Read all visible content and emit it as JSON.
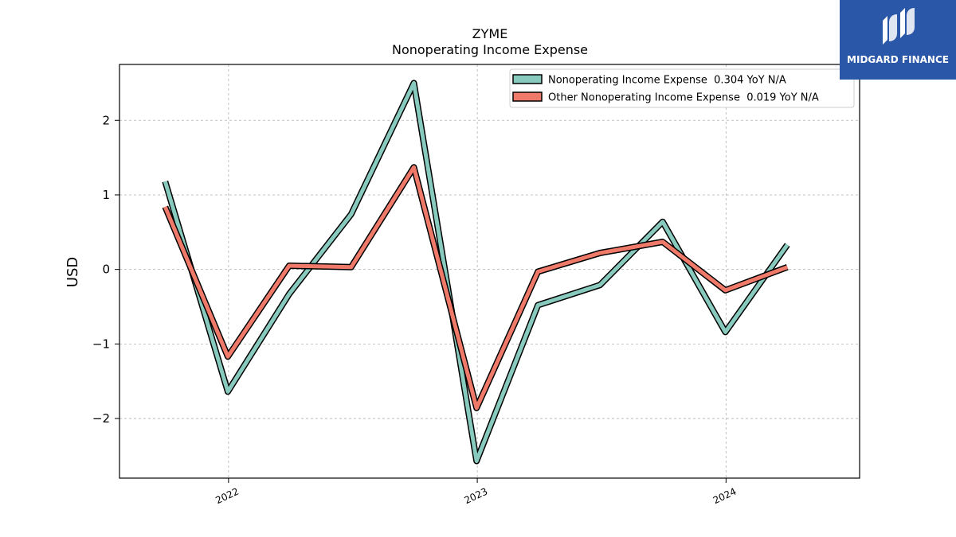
{
  "chart_data": {
    "type": "line",
    "title": "ZYME",
    "subtitle": "Nonoperating Income Expense",
    "xlabel": "",
    "ylabel": "USD",
    "x_tick_labels": [
      "2022",
      "2023",
      "2024"
    ],
    "y_tick_labels": [
      "2",
      "1",
      "0",
      "−1",
      "−2"
    ],
    "y_ticks": [
      2,
      1,
      0,
      -1,
      -2
    ],
    "ylim": [
      -2.8,
      2.75
    ],
    "x": [
      "2021-09-30",
      "2021-12-31",
      "2022-03-31",
      "2022-06-30",
      "2022-09-30",
      "2022-12-31",
      "2023-03-31",
      "2023-06-30",
      "2023-09-30",
      "2023-12-31",
      "2024-03-31"
    ],
    "grid": true,
    "legend_position": "top-right",
    "series": [
      {
        "name": "Nonoperating Income Expense  0.304 YoY N/A",
        "color": "#88cabd",
        "values": [
          1.18,
          -1.64,
          -0.33,
          0.74,
          2.5,
          -2.57,
          -0.48,
          -0.21,
          0.64,
          -0.84,
          0.33
        ]
      },
      {
        "name": "Other Nonoperating Income Expense  0.019 YoY N/A",
        "color": "#f07a6a",
        "values": [
          0.84,
          -1.17,
          0.05,
          0.03,
          1.37,
          -1.86,
          -0.03,
          0.22,
          0.37,
          -0.28,
          0.03
        ]
      }
    ]
  },
  "logo": {
    "text": "MIDGARD FINANCE",
    "icon": "midgard-logo-icon",
    "color": "#2b57a8"
  }
}
